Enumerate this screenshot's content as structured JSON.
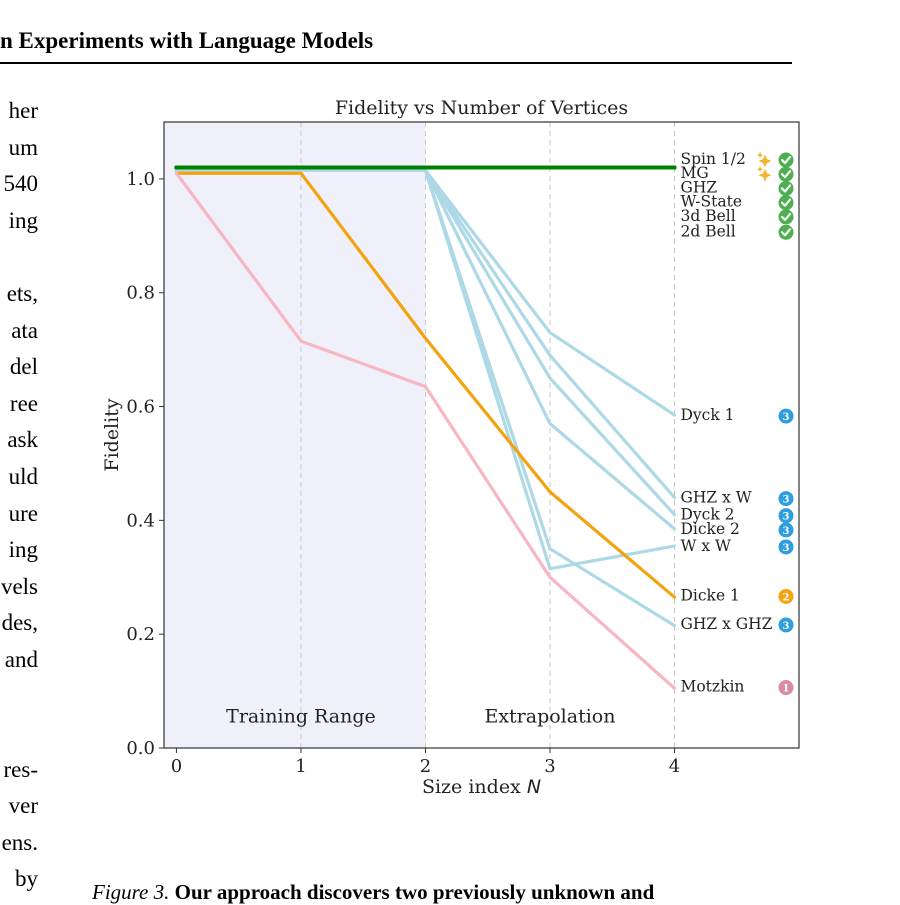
{
  "header": {
    "title": "n Experiments with Language Models"
  },
  "left_column_fragments": [
    "her",
    "um",
    "540",
    "ing",
    "",
    "ets,",
    "ata",
    "del",
    "ree",
    "ask",
    "uld",
    "ure",
    "ing",
    "vels",
    "des,",
    "and",
    "",
    "",
    "res-",
    "ver",
    "ens.",
    "by"
  ],
  "caption": {
    "figure_label": "Figure 3.",
    "bold_text": "Our approach discovers two previously unknown and"
  },
  "chart_data": {
    "type": "line",
    "title": "Fidelity vs Number of Vertices",
    "xlabel": "Size index N",
    "ylabel": "Fidelity",
    "xlim": [
      -0.1,
      5.0
    ],
    "ylim": [
      0.0,
      1.1
    ],
    "x_ticks": [
      0,
      1,
      2,
      3,
      4
    ],
    "y_ticks": [
      0.0,
      0.2,
      0.4,
      0.6,
      0.8,
      1.0
    ],
    "x_tick_labels": [
      "0",
      "1",
      "2",
      "3",
      "4"
    ],
    "y_tick_labels": [
      "0.0",
      "0.2",
      "0.4",
      "0.6",
      "0.8",
      "1.0"
    ],
    "regions": [
      {
        "label": "Training Range",
        "x_start": -0.1,
        "x_end": 2,
        "shaded": true
      },
      {
        "label": "Extrapolation",
        "x_start": 2,
        "x_end": 4,
        "shaded": false
      }
    ],
    "vertical_gridlines_at": [
      1,
      2,
      3,
      4
    ],
    "x": [
      0,
      1,
      2,
      3,
      4
    ],
    "colors": {
      "green": "#008000",
      "orange": "#f2a30f",
      "pink": "#f7b6c2",
      "blue": "#add8e6",
      "shade": "#f0f0fb",
      "check_green": "#4caf50",
      "badge_blue": "#2f9ee0",
      "badge_orange": "#f2a30f",
      "badge_pink": "#d98aa6",
      "sparkle": "#f2b531"
    },
    "series": [
      {
        "name": "Spin 1/2",
        "color": "green",
        "values": [
          1.02,
          1.02,
          1.02,
          1.02,
          1.02
        ],
        "label_y": 1.035,
        "badge": "check",
        "sparkle": true
      },
      {
        "name": "MG",
        "color": "green",
        "values": [
          1.02,
          1.02,
          1.02,
          1.02,
          1.02
        ],
        "label_y": 1.01,
        "badge": "check",
        "sparkle": true
      },
      {
        "name": "GHZ",
        "color": "green",
        "values": [
          1.02,
          1.02,
          1.02,
          1.02,
          1.02
        ],
        "label_y": 0.985,
        "badge": "check"
      },
      {
        "name": "W-State",
        "color": "green",
        "values": [
          1.02,
          1.02,
          1.02,
          1.02,
          1.02
        ],
        "label_y": 0.96,
        "badge": "check"
      },
      {
        "name": "3d Bell",
        "color": "green",
        "values": [
          1.02,
          1.02,
          1.02,
          1.02,
          1.02
        ],
        "label_y": 0.935,
        "badge": "check"
      },
      {
        "name": "2d Bell",
        "color": "green",
        "values": [
          1.02,
          1.02,
          1.02,
          1.02,
          1.02
        ],
        "label_y": 0.908,
        "badge": "check"
      },
      {
        "name": "Dyck 1",
        "color": "blue",
        "values": [
          1.015,
          1.015,
          1.015,
          0.73,
          0.585
        ],
        "label_y": 0.585,
        "badge": "3"
      },
      {
        "name": "GHZ x W",
        "color": "blue",
        "values": [
          1.015,
          1.015,
          1.015,
          0.69,
          0.44
        ],
        "label_y": 0.44,
        "badge": "3"
      },
      {
        "name": "Dyck 2",
        "color": "blue",
        "values": [
          1.015,
          1.015,
          1.015,
          0.65,
          0.41
        ],
        "label_y": 0.41,
        "badge": "3"
      },
      {
        "name": "Dicke 2",
        "color": "blue",
        "values": [
          1.015,
          1.015,
          1.015,
          0.57,
          0.385
        ],
        "label_y": 0.385,
        "badge": "3"
      },
      {
        "name": "W x W",
        "color": "blue",
        "values": [
          1.015,
          1.015,
          1.015,
          0.315,
          0.355
        ],
        "label_y": 0.355,
        "badge": "3"
      },
      {
        "name": "GHZ x GHZ",
        "color": "blue",
        "values": [
          1.015,
          1.015,
          1.015,
          0.35,
          0.215
        ],
        "label_y": 0.218,
        "badge": "3"
      },
      {
        "name": "Dicke 1",
        "color": "orange",
        "values": [
          1.01,
          1.01,
          0.72,
          0.45,
          0.265
        ],
        "label_y": 0.268,
        "badge": "2"
      },
      {
        "name": "Motzkin",
        "color": "pink",
        "values": [
          1.01,
          0.715,
          0.635,
          0.3,
          0.105
        ],
        "label_y": 0.108,
        "badge": "1"
      }
    ]
  }
}
